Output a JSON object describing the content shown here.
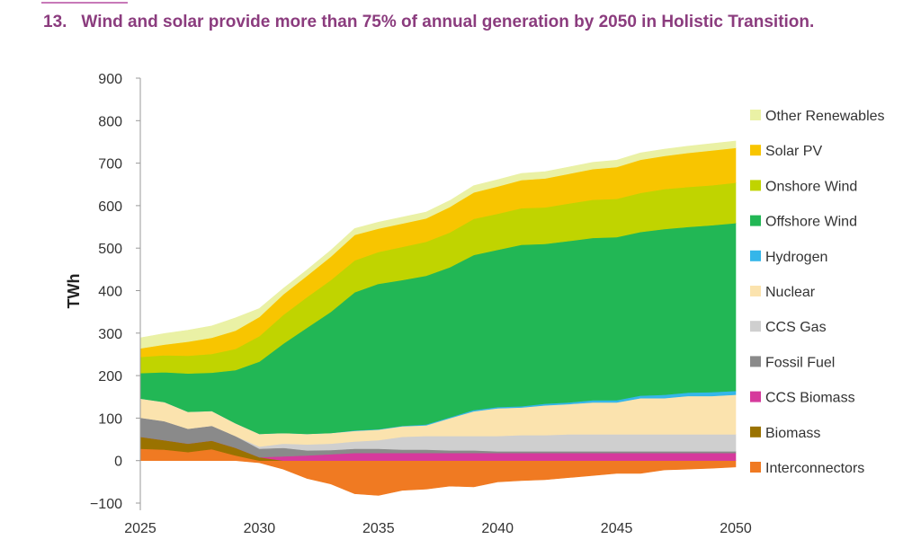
{
  "header": {
    "number": "13.",
    "title": "Wind and solar provide more than 75% of annual generation by 2050 in Holistic Transition."
  },
  "chart_data": {
    "type": "area",
    "stacked": true,
    "title": "Wind and solar provide more than 75% of annual generation by 2050 in Holistic Transition.",
    "xlabel": "",
    "ylabel": "TWh",
    "xlim": [
      2025,
      2050
    ],
    "ylim": [
      -100,
      900
    ],
    "x_ticks": [
      2025,
      2030,
      2035,
      2040,
      2045,
      2050
    ],
    "y_ticks": [
      900,
      800,
      700,
      600,
      500,
      400,
      300,
      200,
      100,
      0,
      -100
    ],
    "y_tick_labels": [
      "900",
      "800",
      "700",
      "600",
      "500",
      "400",
      "300",
      "200",
      "100",
      "0",
      "−100"
    ],
    "grid": false,
    "legend_position": "right",
    "x": [
      2025,
      2026,
      2027,
      2028,
      2029,
      2030,
      2031,
      2032,
      2033,
      2034,
      2035,
      2036,
      2037,
      2038,
      2039,
      2040,
      2041,
      2042,
      2043,
      2044,
      2045,
      2046,
      2047,
      2048,
      2049,
      2050
    ],
    "series": [
      {
        "name": "Interconnectors",
        "color": "#f07a22",
        "values": [
          28,
          26,
          20,
          27,
          12,
          -5,
          -20,
          -42,
          -55,
          -78,
          -82,
          -70,
          -67,
          -60,
          -62,
          -50,
          -47,
          -45,
          -40,
          -35,
          -30,
          -30,
          -22,
          -20,
          -18,
          -15
        ]
      },
      {
        "name": "Biomass",
        "color": "#9a7200",
        "values": [
          28,
          22,
          20,
          20,
          18,
          8,
          0,
          0,
          0,
          0,
          0,
          0,
          0,
          0,
          0,
          0,
          0,
          0,
          0,
          0,
          0,
          0,
          0,
          0,
          0,
          0
        ]
      },
      {
        "name": "CCS Biomass",
        "color": "#d63a9c",
        "values": [
          0,
          0,
          0,
          0,
          0,
          0,
          10,
          12,
          15,
          18,
          18,
          18,
          18,
          18,
          18,
          18,
          18,
          18,
          18,
          18,
          18,
          18,
          18,
          18,
          18,
          18
        ]
      },
      {
        "name": "Fossil Fuel",
        "color": "#8a8a8a",
        "values": [
          45,
          45,
          35,
          35,
          28,
          20,
          20,
          12,
          10,
          10,
          10,
          8,
          8,
          6,
          6,
          4,
          4,
          4,
          4,
          4,
          4,
          4,
          4,
          4,
          4,
          4
        ]
      },
      {
        "name": "CCS Gas",
        "color": "#cfcfcf",
        "values": [
          0,
          0,
          0,
          0,
          0,
          5,
          10,
          14,
          15,
          17,
          20,
          30,
          32,
          34,
          34,
          36,
          38,
          38,
          40,
          40,
          40,
          40,
          40,
          40,
          40,
          40
        ]
      },
      {
        "name": "Nuclear",
        "color": "#fbe3ae",
        "values": [
          45,
          45,
          40,
          35,
          30,
          30,
          25,
          25,
          25,
          25,
          25,
          25,
          25,
          42,
          58,
          65,
          65,
          70,
          71,
          75,
          75,
          85,
          85,
          90,
          90,
          93
        ]
      },
      {
        "name": "Hydrogen",
        "color": "#35b6e9",
        "values": [
          0,
          0,
          0,
          0,
          0,
          0,
          0,
          0,
          0,
          1,
          1,
          1,
          2,
          2,
          3,
          3,
          3,
          4,
          4,
          5,
          5,
          6,
          8,
          8,
          9,
          9
        ]
      },
      {
        "name": "Offshore Wind",
        "color": "#22b755",
        "values": [
          60,
          70,
          90,
          90,
          125,
          170,
          210,
          250,
          285,
          325,
          342,
          343,
          350,
          353,
          365,
          370,
          380,
          376,
          380,
          382,
          384,
          385,
          390,
          390,
          393,
          395
        ]
      },
      {
        "name": "Onshore Wind",
        "color": "#c0d400",
        "values": [
          38,
          40,
          42,
          44,
          50,
          60,
          68,
          72,
          75,
          75,
          75,
          78,
          80,
          82,
          85,
          85,
          86,
          86,
          88,
          90,
          90,
          92,
          94,
          94,
          94,
          95
        ]
      },
      {
        "name": "Solar PV",
        "color": "#f8c500",
        "values": [
          20,
          25,
          33,
          38,
          43,
          45,
          48,
          50,
          55,
          60,
          55,
          55,
          55,
          60,
          62,
          64,
          66,
          68,
          70,
          72,
          75,
          78,
          78,
          80,
          82,
          82
        ]
      },
      {
        "name": "Other Renewables",
        "color": "#eaf1a5",
        "values": [
          25,
          26,
          27,
          28,
          30,
          20,
          14,
          14,
          15,
          15,
          15,
          15,
          15,
          15,
          16,
          16,
          16,
          16,
          16,
          16,
          16,
          16,
          16,
          16,
          16,
          16
        ]
      }
    ],
    "legend_order": [
      "Other Renewables",
      "Solar PV",
      "Onshore Wind",
      "Offshore Wind",
      "Hydrogen",
      "Nuclear",
      "CCS Gas",
      "Fossil Fuel",
      "CCS Biomass",
      "Biomass",
      "Interconnectors"
    ]
  }
}
